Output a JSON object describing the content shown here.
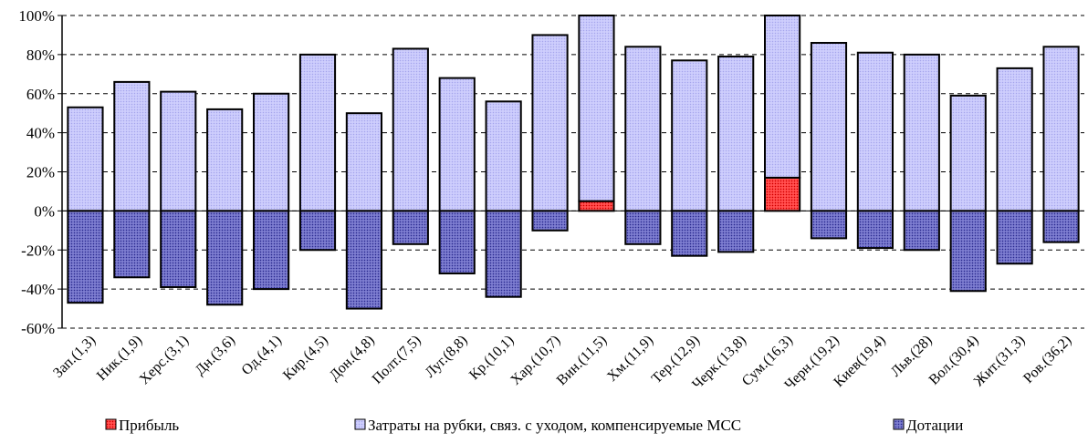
{
  "chart_data": {
    "type": "bar",
    "stacked": true,
    "title": "",
    "xlabel": "",
    "ylabel": "",
    "ylim": [
      -60,
      100
    ],
    "yticks": [
      "100%",
      "80%",
      "60%",
      "40%",
      "20%",
      "0%",
      "-20%",
      "-40%",
      "-60%"
    ],
    "ytick_values": [
      100,
      80,
      60,
      40,
      20,
      0,
      -20,
      -40,
      -60
    ],
    "grid": "horizontal dashed",
    "legend_position": "bottom",
    "categories": [
      "Зап.(1,3)",
      "Ник.(1,9)",
      "Херс.(3,1)",
      "Дн.(3,6)",
      "Од.(4,1)",
      "Кир.(4,5)",
      "Дон.(4,8)",
      "Полт.(7,5)",
      "Луг.(8,8)",
      "Кр.(10,1)",
      "Хар.(10,7)",
      "Вин.(11,5)",
      "Хм.(11,9)",
      "Тер.(12,9)",
      "Черк.(13,8)",
      "Сум.(16,3)",
      "Черн.(19,2)",
      "Киев(19,4)",
      "Льв.(28)",
      "Вол.(30,4)",
      "Жит.(31,3)",
      "Ров.(36,2)"
    ],
    "series": [
      {
        "name": "Прибыль",
        "color": "#ff3b3b",
        "pattern": "dots-red",
        "values": [
          0,
          0,
          0,
          0,
          0,
          0,
          0,
          0,
          0,
          0,
          0,
          5,
          0,
          0,
          0,
          17,
          0,
          0,
          0,
          0,
          0,
          0
        ]
      },
      {
        "name": "Затраты на рубки, связ. с уходом, компенсируемые МСС",
        "color": "#c8c8ff",
        "pattern": "dots-lavender",
        "values": [
          53,
          66,
          61,
          52,
          60,
          80,
          50,
          83,
          68,
          56,
          90,
          95,
          84,
          77,
          79,
          83,
          86,
          81,
          80,
          59,
          73,
          84
        ]
      },
      {
        "name": "Дотации",
        "color": "#5a5ab4",
        "pattern": "dots-blue",
        "values": [
          -47,
          -34,
          -39,
          -48,
          -40,
          -20,
          -50,
          -17,
          -32,
          -44,
          -10,
          0,
          -17,
          -23,
          -21,
          0,
          -14,
          -19,
          -20,
          -41,
          -27,
          -16
        ]
      }
    ]
  }
}
